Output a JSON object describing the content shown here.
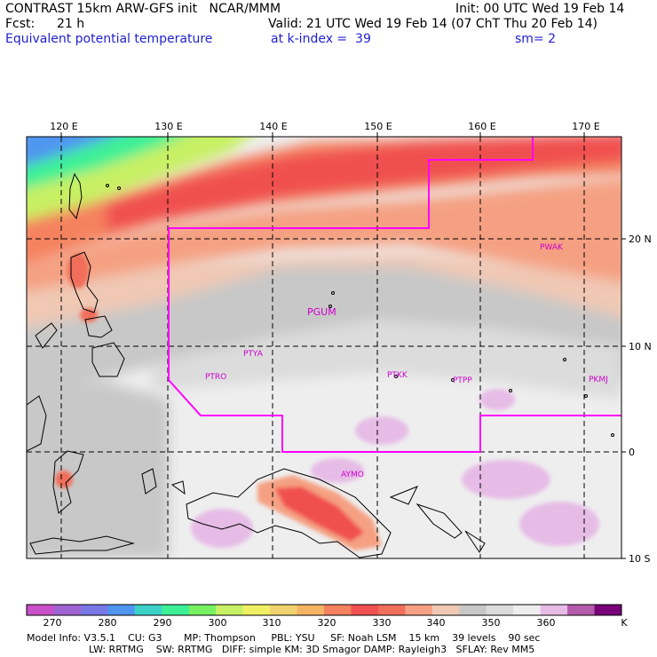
{
  "header": {
    "model_line": "CONTRAST 15km ARW-GFS init   NCAR/MMM",
    "fcst_label": "Fcst:",
    "fcst_value": "21 h",
    "field": "Equivalent potential temperature",
    "init": "Init: 00 UTC Wed 19 Feb 14",
    "valid": "Valid: 21 UTC Wed 19 Feb 14 (07 ChT Thu 20 Feb 14)",
    "level": "at k-index =  39",
    "smoothing": "sm= 2"
  },
  "map": {
    "lon_labels": [
      "120 E",
      "130 E",
      "140 E",
      "150 E",
      "160 E",
      "170 E"
    ],
    "lat_labels": [
      "20 N",
      "10 N",
      "0",
      "10 S"
    ],
    "stations": [
      "PWAK",
      "PGUM",
      "PTYA",
      "PTRO",
      "PTKK",
      "PTPP",
      "PKMJ",
      "AYMO"
    ],
    "boundary_color": "#ff00ff",
    "grid_style": "dashed black"
  },
  "colorbar": {
    "labels": [
      "270",
      "280",
      "290",
      "300",
      "310",
      "320",
      "330",
      "340",
      "350",
      "360"
    ],
    "unit": "K",
    "colors": [
      "#c850c8",
      "#a064d2",
      "#7878e6",
      "#5096f0",
      "#3cd2c8",
      "#3cf096",
      "#78f064",
      "#c8f064",
      "#f0f064",
      "#f0d26e",
      "#f5b464",
      "#f5825f",
      "#f05050",
      "#f06e5a",
      "#f5a082",
      "#f0c8b4",
      "#c8c8c8",
      "#dcdcdc",
      "#eeeeee",
      "#e6bce6",
      "#b45aaa",
      "#780078"
    ]
  },
  "footer": {
    "line1": "Model Info: V3.5.1    CU: G3       MP: Thompson     PBL: YSU     SF: Noah LSM    15 km    39 levels    90 sec",
    "line2": "LW: RRTMG    SW: RRTMG   DIFF: simple KM: 3D Smagor DAMP: Rayleigh3   SFLAY: Rev MM5"
  }
}
